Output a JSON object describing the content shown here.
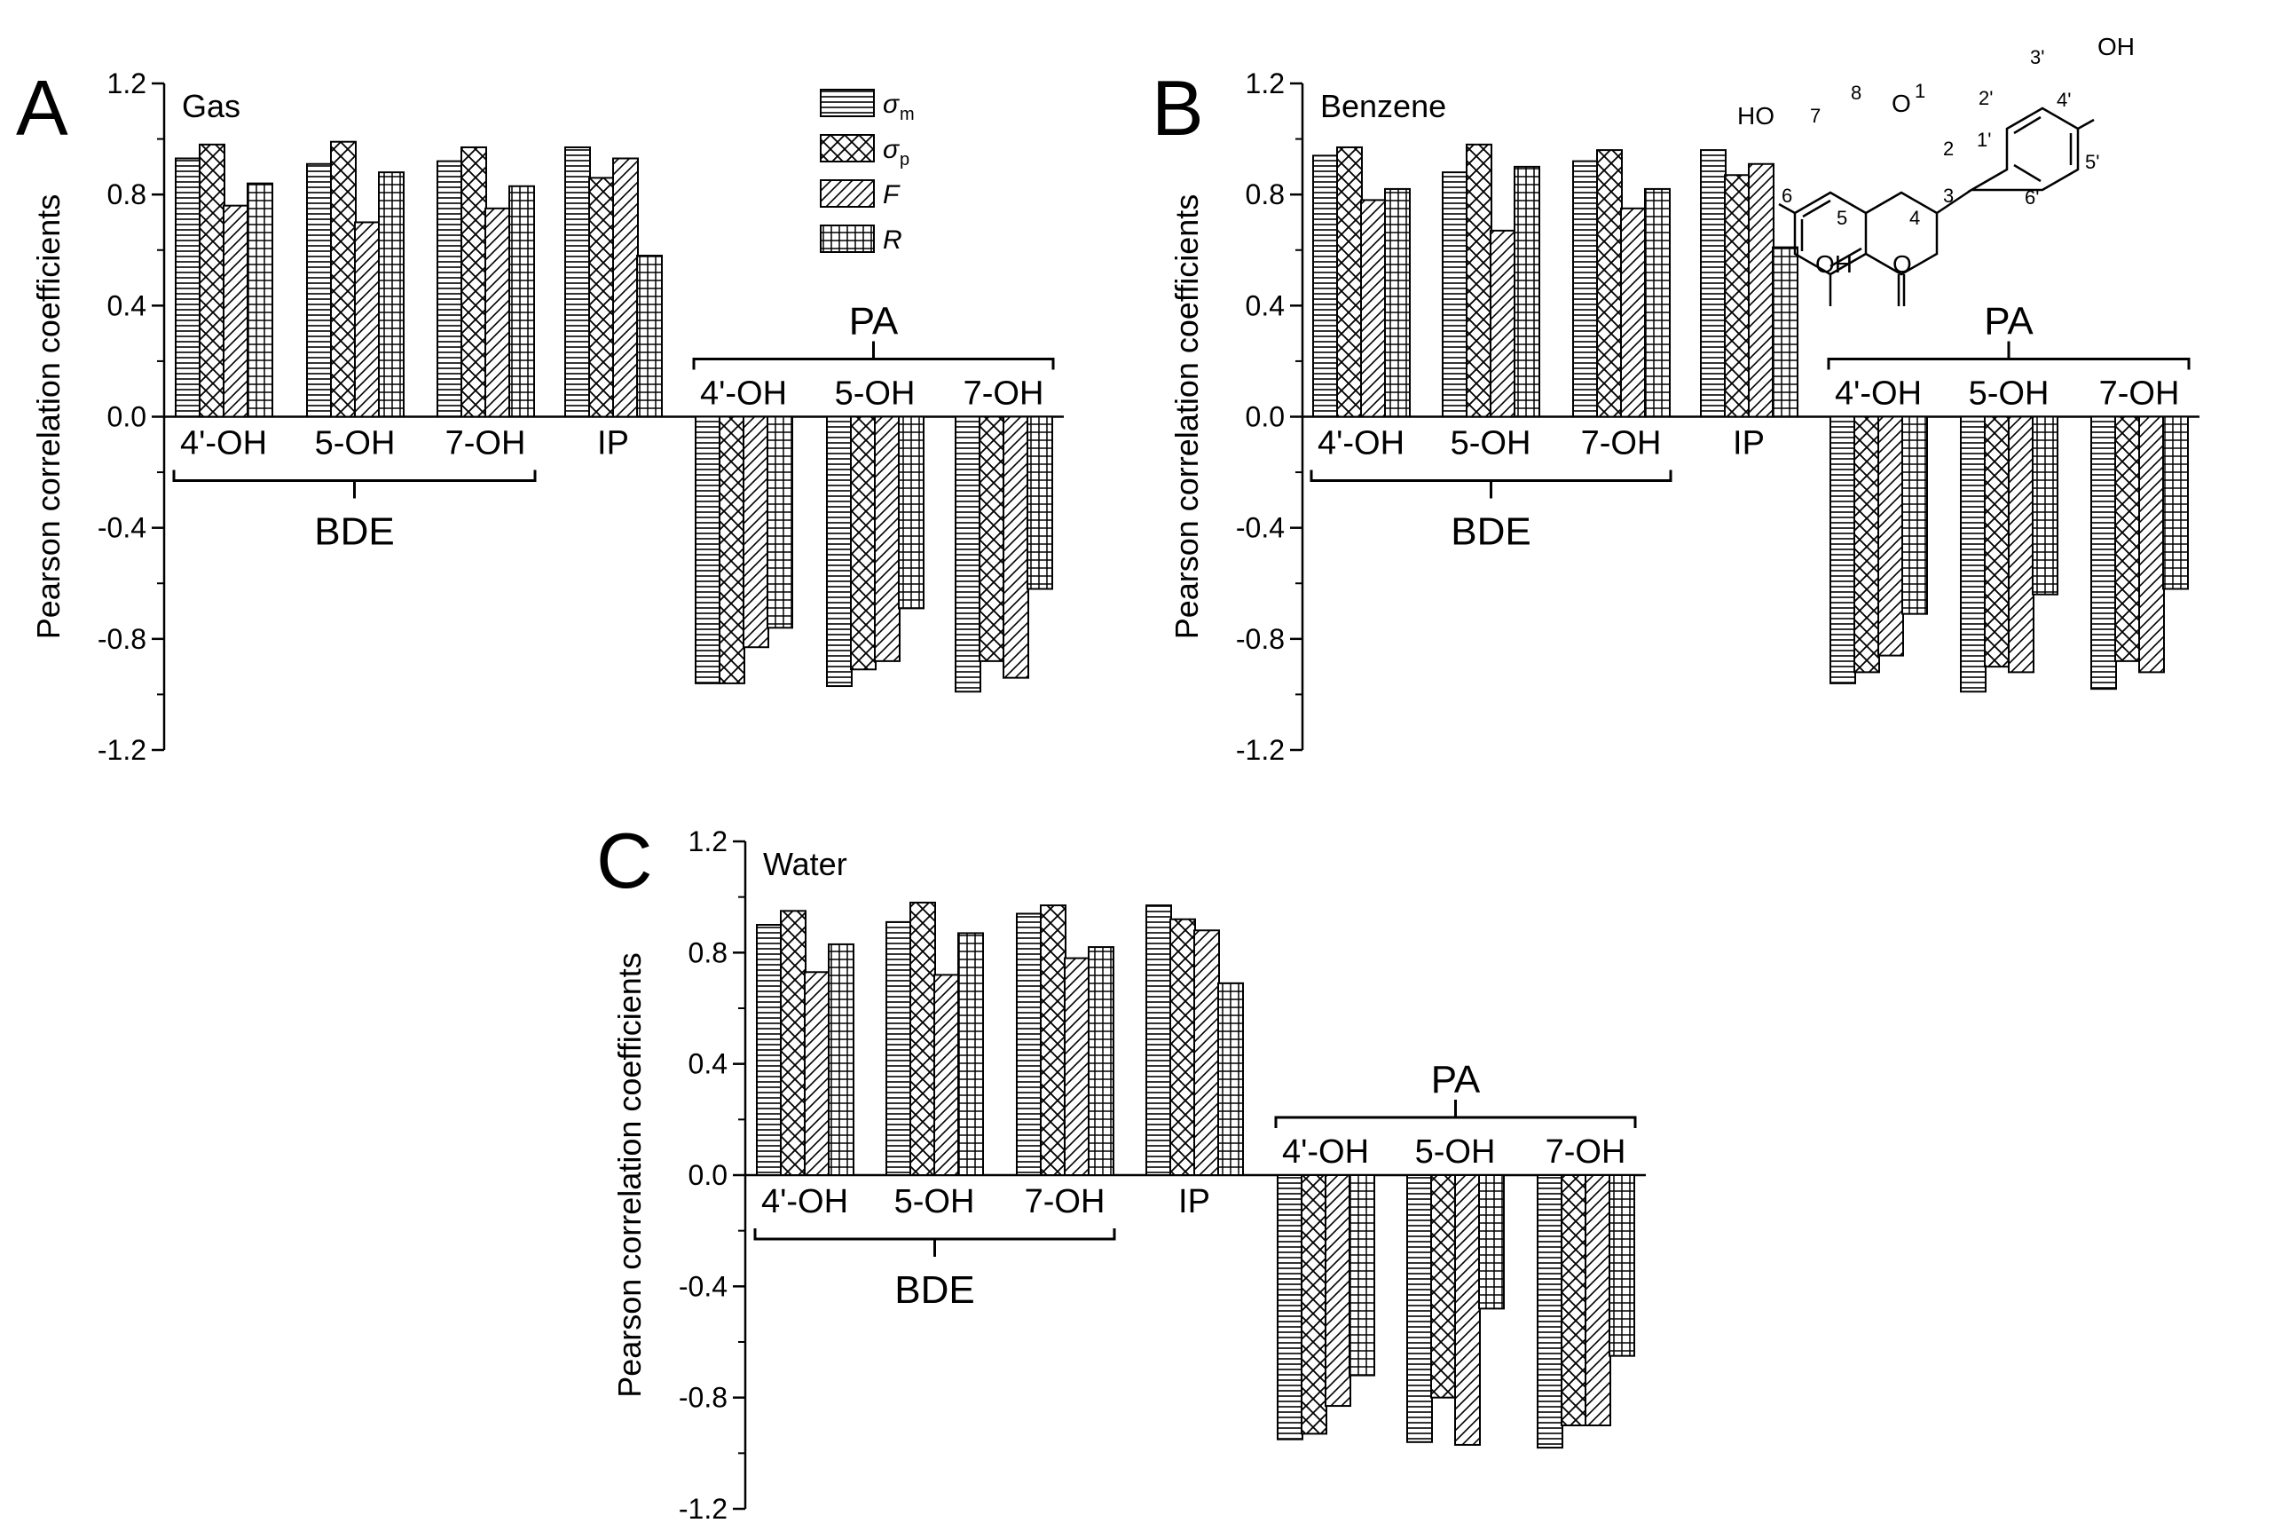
{
  "figure": {
    "panel_letters": [
      "A",
      "B",
      "C"
    ],
    "legend": {
      "entries": [
        {
          "sym": "σ",
          "sub": "m"
        },
        {
          "sym": "σ",
          "sub": "p"
        },
        {
          "sym": "F",
          "sub": ""
        },
        {
          "sym": "R",
          "sub": ""
        }
      ]
    },
    "bracket_labels": {
      "bde": "BDE",
      "pa": "PA"
    },
    "molecule": {
      "atom_labels": [
        "1",
        "2",
        "3",
        "4",
        "5",
        "6",
        "7",
        "8",
        "1'",
        "2'",
        "3'",
        "4'",
        "5'",
        "6'"
      ],
      "groups": [
        "HO",
        "OH",
        "OH",
        "O",
        "O"
      ]
    }
  },
  "chart_data": [
    {
      "type": "bar",
      "panel": "A",
      "title": "Gas",
      "ylabel": "Pearson correlation coefficients",
      "ylim": [
        -1.2,
        1.2
      ],
      "yticks": [
        "-1.2",
        "-0.8",
        "-0.4",
        "0.0",
        "0.4",
        "0.8",
        "1.2"
      ],
      "categories": [
        "4'-OH",
        "5-OH",
        "7-OH",
        "IP",
        "4'-OH",
        "5-OH",
        "7-OH"
      ],
      "groups": [
        {
          "name": "BDE",
          "categories": [
            0,
            1,
            2
          ]
        },
        {
          "name": "PA",
          "categories": [
            4,
            5,
            6
          ]
        }
      ],
      "series": [
        {
          "name": "σm",
          "values": [
            0.93,
            0.91,
            0.92,
            0.97,
            -0.96,
            -0.97,
            -0.99
          ]
        },
        {
          "name": "σp",
          "values": [
            0.98,
            0.99,
            0.97,
            0.86,
            -0.96,
            -0.91,
            -0.88
          ]
        },
        {
          "name": "F",
          "values": [
            0.76,
            0.7,
            0.75,
            0.93,
            -0.83,
            -0.88,
            -0.94
          ]
        },
        {
          "name": "R",
          "values": [
            0.84,
            0.88,
            0.83,
            0.58,
            -0.76,
            -0.69,
            -0.62
          ]
        }
      ]
    },
    {
      "type": "bar",
      "panel": "B",
      "title": "Benzene",
      "ylabel": "Pearson correlation coefficients",
      "ylim": [
        -1.2,
        1.2
      ],
      "yticks": [
        "-1.2",
        "-0.8",
        "-0.4",
        "0.0",
        "0.4",
        "0.8",
        "1.2"
      ],
      "categories": [
        "4'-OH",
        "5-OH",
        "7-OH",
        "IP",
        "4'-OH",
        "5-OH",
        "7-OH"
      ],
      "groups": [
        {
          "name": "BDE",
          "categories": [
            0,
            1,
            2
          ]
        },
        {
          "name": "PA",
          "categories": [
            4,
            5,
            6
          ]
        }
      ],
      "series": [
        {
          "name": "σm",
          "values": [
            0.94,
            0.88,
            0.92,
            0.96,
            -0.96,
            -0.99,
            -0.98
          ]
        },
        {
          "name": "σp",
          "values": [
            0.97,
            0.98,
            0.96,
            0.87,
            -0.92,
            -0.9,
            -0.88
          ]
        },
        {
          "name": "F",
          "values": [
            0.78,
            0.67,
            0.75,
            0.91,
            -0.86,
            -0.92,
            -0.92
          ]
        },
        {
          "name": "R",
          "values": [
            0.82,
            0.9,
            0.82,
            0.61,
            -0.71,
            -0.64,
            -0.62
          ]
        }
      ]
    },
    {
      "type": "bar",
      "panel": "C",
      "title": "Water",
      "ylabel": "Pearson correlation coefficients",
      "ylim": [
        -1.2,
        1.2
      ],
      "yticks": [
        "-1.2",
        "-0.8",
        "-0.4",
        "0.0",
        "0.4",
        "0.8",
        "1.2"
      ],
      "categories": [
        "4'-OH",
        "5-OH",
        "7-OH",
        "IP",
        "4'-OH",
        "5-OH",
        "7-OH"
      ],
      "groups": [
        {
          "name": "BDE",
          "categories": [
            0,
            1,
            2
          ]
        },
        {
          "name": "PA",
          "categories": [
            4,
            5,
            6
          ]
        }
      ],
      "series": [
        {
          "name": "σm",
          "values": [
            0.9,
            0.91,
            0.94,
            0.97,
            -0.95,
            -0.96,
            -0.98
          ]
        },
        {
          "name": "σp",
          "values": [
            0.95,
            0.98,
            0.97,
            0.92,
            -0.93,
            -0.8,
            -0.9
          ]
        },
        {
          "name": "F",
          "values": [
            0.73,
            0.72,
            0.78,
            0.88,
            -0.83,
            -0.97,
            -0.9
          ]
        },
        {
          "name": "R",
          "values": [
            0.83,
            0.87,
            0.82,
            0.69,
            -0.72,
            -0.48,
            -0.65
          ]
        }
      ]
    }
  ]
}
